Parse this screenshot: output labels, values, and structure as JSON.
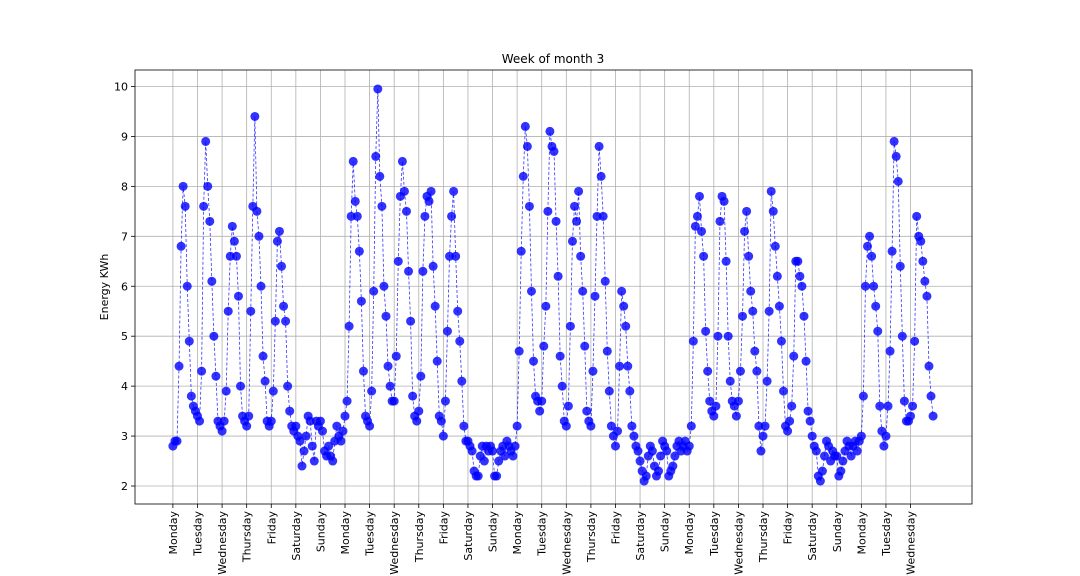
{
  "chart_data": {
    "type": "line",
    "title": "Week of month 3",
    "y_label": "Energy KWh",
    "color": "#0000ff",
    "grid": true,
    "marker": "o",
    "line_style": "dashed",
    "xlim": [
      -37,
      780
    ],
    "ylim": [
      1.64,
      10.33
    ],
    "yticks": [
      2,
      3,
      4,
      5,
      6,
      7,
      8,
      9,
      10
    ],
    "xticks": [
      {
        "value": 0,
        "label": "Monday"
      },
      {
        "value": 24,
        "label": "Tuesday"
      },
      {
        "value": 48,
        "label": "Wednesday"
      },
      {
        "value": 72,
        "label": "Thursday"
      },
      {
        "value": 96,
        "label": "Friday"
      },
      {
        "value": 120,
        "label": "Saturday"
      },
      {
        "value": 144,
        "label": "Sunday"
      },
      {
        "value": 168,
        "label": "Monday"
      },
      {
        "value": 192,
        "label": "Tuesday"
      },
      {
        "value": 216,
        "label": "Wednesday"
      },
      {
        "value": 240,
        "label": "Thursday"
      },
      {
        "value": 264,
        "label": "Friday"
      },
      {
        "value": 288,
        "label": "Saturday"
      },
      {
        "value": 312,
        "label": "Sunday"
      },
      {
        "value": 336,
        "label": "Monday"
      },
      {
        "value": 360,
        "label": "Tuesday"
      },
      {
        "value": 384,
        "label": "Wednesday"
      },
      {
        "value": 408,
        "label": "Thursday"
      },
      {
        "value": 432,
        "label": "Friday"
      },
      {
        "value": 456,
        "label": "Saturday"
      },
      {
        "value": 480,
        "label": "Sunday"
      },
      {
        "value": 504,
        "label": "Monday"
      },
      {
        "value": 528,
        "label": "Tuesday"
      },
      {
        "value": 552,
        "label": "Wednesday"
      },
      {
        "value": 576,
        "label": "Thursday"
      },
      {
        "value": 600,
        "label": "Friday"
      },
      {
        "value": 624,
        "label": "Saturday"
      },
      {
        "value": 648,
        "label": "Sunday"
      },
      {
        "value": 672,
        "label": "Monday"
      },
      {
        "value": 696,
        "label": "Tuesday"
      },
      {
        "value": 720,
        "label": "Wednesday"
      }
    ],
    "x": [
      0,
      2,
      4,
      6,
      8,
      10,
      12,
      14,
      16,
      18,
      20,
      22,
      24,
      26,
      28,
      30,
      32,
      34,
      36,
      38,
      40,
      42,
      44,
      46,
      48,
      50,
      52,
      54,
      56,
      58,
      60,
      62,
      64,
      66,
      68,
      70,
      72,
      74,
      76,
      78,
      80,
      82,
      84,
      86,
      88,
      90,
      92,
      94,
      96,
      98,
      100,
      102,
      104,
      106,
      108,
      110,
      112,
      114,
      116,
      118,
      120,
      122,
      124,
      126,
      128,
      130,
      132,
      134,
      136,
      138,
      140,
      142,
      144,
      146,
      148,
      150,
      152,
      154,
      156,
      158,
      160,
      162,
      164,
      166,
      168,
      170,
      172,
      174,
      176,
      178,
      180,
      182,
      184,
      186,
      188,
      190,
      192,
      194,
      196,
      198,
      200,
      202,
      204,
      206,
      208,
      210,
      212,
      214,
      216,
      218,
      220,
      222,
      224,
      226,
      228,
      230,
      232,
      234,
      236,
      238,
      240,
      242,
      244,
      246,
      248,
      250,
      252,
      254,
      256,
      258,
      260,
      262,
      264,
      266,
      268,
      270,
      272,
      274,
      276,
      278,
      280,
      282,
      284,
      286,
      288,
      290,
      292,
      294,
      296,
      298,
      300,
      302,
      304,
      306,
      308,
      310,
      312,
      314,
      316,
      318,
      320,
      322,
      324,
      326,
      328,
      330,
      332,
      334,
      336,
      338,
      340,
      342,
      344,
      346,
      348,
      350,
      352,
      354,
      356,
      358,
      360,
      362,
      364,
      366,
      368,
      370,
      372,
      374,
      376,
      378,
      380,
      382,
      384,
      386,
      388,
      390,
      392,
      394,
      396,
      398,
      400,
      402,
      404,
      406,
      408,
      410,
      412,
      414,
      416,
      418,
      420,
      422,
      424,
      426,
      428,
      430,
      432,
      434,
      436,
      438,
      440,
      442,
      444,
      446,
      448,
      450,
      452,
      454,
      456,
      458,
      460,
      462,
      464,
      466,
      468,
      470,
      472,
      474,
      476,
      478,
      480,
      482,
      484,
      486,
      488,
      490,
      492,
      494,
      496,
      498,
      500,
      502,
      504,
      506,
      508,
      510,
      512,
      514,
      516,
      518,
      520,
      522,
      524,
      526,
      528,
      530,
      532,
      534,
      536,
      538,
      540,
      542,
      544,
      546,
      548,
      550,
      552,
      554,
      556,
      558,
      560,
      562,
      564,
      566,
      568,
      570,
      572,
      574,
      576,
      578,
      580,
      582,
      584,
      586,
      588,
      590,
      592,
      594,
      596,
      598,
      600,
      602,
      604,
      606,
      608,
      610,
      612,
      614,
      616,
      618,
      620,
      622,
      624,
      626,
      628,
      630,
      632,
      634,
      636,
      638,
      640,
      642,
      644,
      646,
      648,
      650,
      652,
      654,
      656,
      658,
      660,
      662,
      664,
      666,
      668,
      670,
      672,
      674,
      676,
      678,
      680,
      682,
      684,
      686,
      688,
      690,
      692,
      694,
      696,
      698,
      700,
      702,
      704,
      706,
      708,
      710,
      712,
      714,
      716,
      718,
      720,
      722,
      724,
      726,
      728,
      730,
      732,
      734,
      736,
      738,
      740,
      742
    ],
    "values": [
      2.8,
      2.9,
      2.9,
      4.4,
      6.8,
      8.0,
      7.6,
      6.0,
      4.9,
      3.8,
      3.6,
      3.5,
      3.4,
      3.3,
      4.3,
      7.6,
      8.9,
      8.0,
      7.3,
      6.1,
      5.0,
      4.2,
      3.3,
      3.2,
      3.1,
      3.3,
      3.9,
      5.5,
      6.6,
      7.2,
      6.9,
      6.6,
      5.8,
      4.0,
      3.4,
      3.3,
      3.2,
      3.4,
      5.5,
      7.6,
      9.4,
      7.5,
      7.0,
      6.0,
      4.6,
      4.1,
      3.3,
      3.2,
      3.3,
      3.9,
      5.3,
      6.9,
      7.1,
      6.4,
      5.6,
      5.3,
      4.0,
      3.5,
      3.2,
      3.1,
      3.2,
      3.0,
      2.9,
      2.4,
      2.7,
      3.0,
      3.4,
      3.3,
      2.8,
      2.5,
      3.3,
      3.2,
      3.3,
      3.1,
      2.7,
      2.6,
      2.8,
      2.6,
      2.5,
      2.9,
      3.2,
      3.0,
      2.9,
      3.1,
      3.4,
      3.7,
      5.2,
      7.4,
      8.5,
      7.7,
      7.4,
      6.7,
      5.7,
      4.3,
      3.4,
      3.3,
      3.2,
      3.9,
      5.9,
      8.6,
      9.95,
      8.2,
      7.6,
      6.0,
      5.4,
      4.4,
      4.0,
      3.7,
      3.7,
      4.6,
      6.5,
      7.8,
      8.5,
      7.9,
      7.5,
      6.3,
      5.3,
      3.8,
      3.4,
      3.3,
      3.5,
      4.2,
      6.3,
      7.4,
      7.8,
      7.7,
      7.9,
      6.4,
      5.6,
      4.5,
      3.4,
      3.3,
      3.0,
      3.7,
      5.1,
      6.6,
      7.4,
      7.9,
      6.6,
      5.5,
      4.9,
      4.1,
      3.2,
      2.9,
      2.9,
      2.8,
      2.7,
      2.3,
      2.2,
      2.2,
      2.6,
      2.8,
      2.5,
      2.8,
      2.7,
      2.8,
      2.7,
      2.2,
      2.2,
      2.5,
      2.7,
      2.8,
      2.6,
      2.9,
      2.8,
      2.7,
      2.6,
      2.8,
      3.2,
      4.7,
      6.7,
      8.2,
      9.2,
      8.8,
      7.6,
      5.9,
      4.5,
      3.8,
      3.7,
      3.5,
      3.7,
      4.8,
      5.6,
      7.5,
      9.1,
      8.8,
      8.7,
      7.3,
      6.2,
      4.6,
      4.0,
      3.3,
      3.2,
      3.6,
      5.2,
      6.9,
      7.6,
      7.3,
      7.9,
      6.6,
      5.9,
      4.8,
      3.5,
      3.3,
      3.2,
      4.3,
      5.8,
      7.4,
      8.8,
      8.2,
      7.4,
      6.1,
      4.7,
      3.9,
      3.2,
      3.0,
      2.8,
      3.1,
      4.4,
      5.9,
      5.6,
      5.2,
      4.4,
      3.9,
      3.2,
      3.0,
      2.8,
      2.7,
      2.5,
      2.3,
      2.1,
      2.2,
      2.6,
      2.8,
      2.7,
      2.4,
      2.2,
      2.3,
      2.6,
      2.9,
      2.8,
      2.7,
      2.2,
      2.3,
      2.4,
      2.6,
      2.8,
      2.9,
      2.7,
      2.8,
      2.9,
      2.7,
      2.8,
      3.2,
      4.9,
      7.2,
      7.4,
      7.8,
      7.1,
      6.6,
      5.1,
      4.3,
      3.7,
      3.5,
      3.4,
      3.6,
      5.0,
      7.3,
      7.8,
      7.7,
      6.5,
      5.0,
      4.1,
      3.7,
      3.6,
      3.4,
      3.7,
      4.3,
      5.4,
      7.1,
      7.5,
      6.6,
      5.9,
      5.5,
      4.7,
      4.3,
      3.2,
      2.7,
      3.0,
      3.2,
      4.1,
      5.5,
      7.9,
      7.5,
      6.8,
      6.2,
      5.6,
      4.9,
      3.9,
      3.2,
      3.1,
      3.3,
      3.6,
      4.6,
      6.5,
      6.5,
      6.2,
      6.0,
      5.4,
      4.5,
      3.5,
      3.3,
      3.0,
      2.8,
      2.7,
      2.2,
      2.1,
      2.3,
      2.6,
      2.9,
      2.8,
      2.5,
      2.7,
      2.6,
      2.6,
      2.2,
      2.3,
      2.5,
      2.7,
      2.9,
      2.8,
      2.6,
      2.8,
      2.9,
      2.7,
      2.9,
      3.0,
      3.8,
      6.0,
      6.8,
      7.0,
      6.6,
      6.0,
      5.6,
      5.1,
      3.6,
      3.1,
      2.8,
      3.0,
      3.6,
      4.7,
      6.7,
      8.9,
      8.6,
      8.1,
      6.4,
      5.0,
      3.7,
      3.3,
      3.3,
      3.4,
      3.6,
      4.9,
      7.4,
      7.0,
      6.9,
      6.5,
      6.1,
      5.8,
      4.4,
      3.8,
      3.4
    ]
  }
}
